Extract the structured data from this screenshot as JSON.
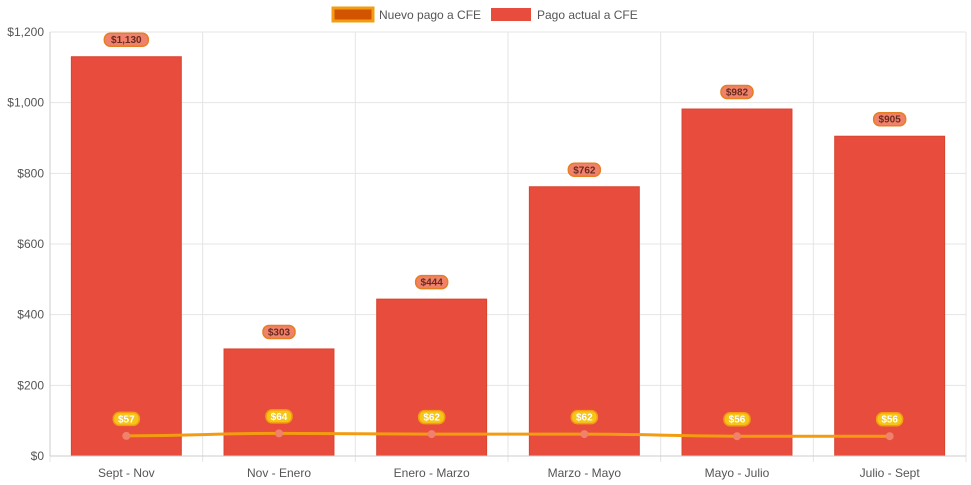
{
  "chart_data": {
    "type": "bar",
    "title": "",
    "xlabel": "",
    "ylabel": "",
    "ylim": [
      0,
      1200
    ],
    "y_ticks": [
      0,
      200,
      400,
      600,
      800,
      1000,
      1200
    ],
    "y_tick_labels": [
      "$0",
      "$200",
      "$400",
      "$600",
      "$800",
      "$1,000",
      "$1,200"
    ],
    "grid": true,
    "legend_position": "top-center",
    "categories": [
      "Sept - Nov",
      "Nov - Enero",
      "Enero - Marzo",
      "Marzo - Mayo",
      "Mayo - Julio",
      "Julio - Sept"
    ],
    "series": [
      {
        "name": "Nuevo pago a CFE",
        "type": "line",
        "color": "#f39c12",
        "marker_color": "#f0826b",
        "label_bg": "#f5c518",
        "values": [
          57,
          64,
          62,
          62,
          56,
          56
        ],
        "labels": [
          "$57",
          "$64",
          "$62",
          "$62",
          "$56",
          "$56"
        ]
      },
      {
        "name": "Pago actual a CFE",
        "type": "bar",
        "color": "#e74c3c",
        "label_bg": "#f0826b",
        "values": [
          1130,
          303,
          444,
          762,
          982,
          905
        ],
        "labels": [
          "$1,130",
          "$303",
          "$444",
          "$762",
          "$982",
          "$905"
        ]
      }
    ]
  },
  "legend": {
    "line_swatch_fill": "#d35400",
    "line_swatch_border": "#f39c12",
    "bar_swatch_fill": "#e74c3c"
  }
}
